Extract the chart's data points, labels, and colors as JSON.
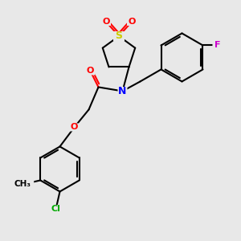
{
  "bg_color": "#e8e8e8",
  "bond_color": "#000000",
  "atom_colors": {
    "O": "#ff0000",
    "N": "#0000ff",
    "S": "#cccc00",
    "F": "#cc00cc",
    "Cl": "#00aa00",
    "C": "#000000"
  },
  "figsize": [
    3.0,
    3.0
  ],
  "dpi": 100
}
